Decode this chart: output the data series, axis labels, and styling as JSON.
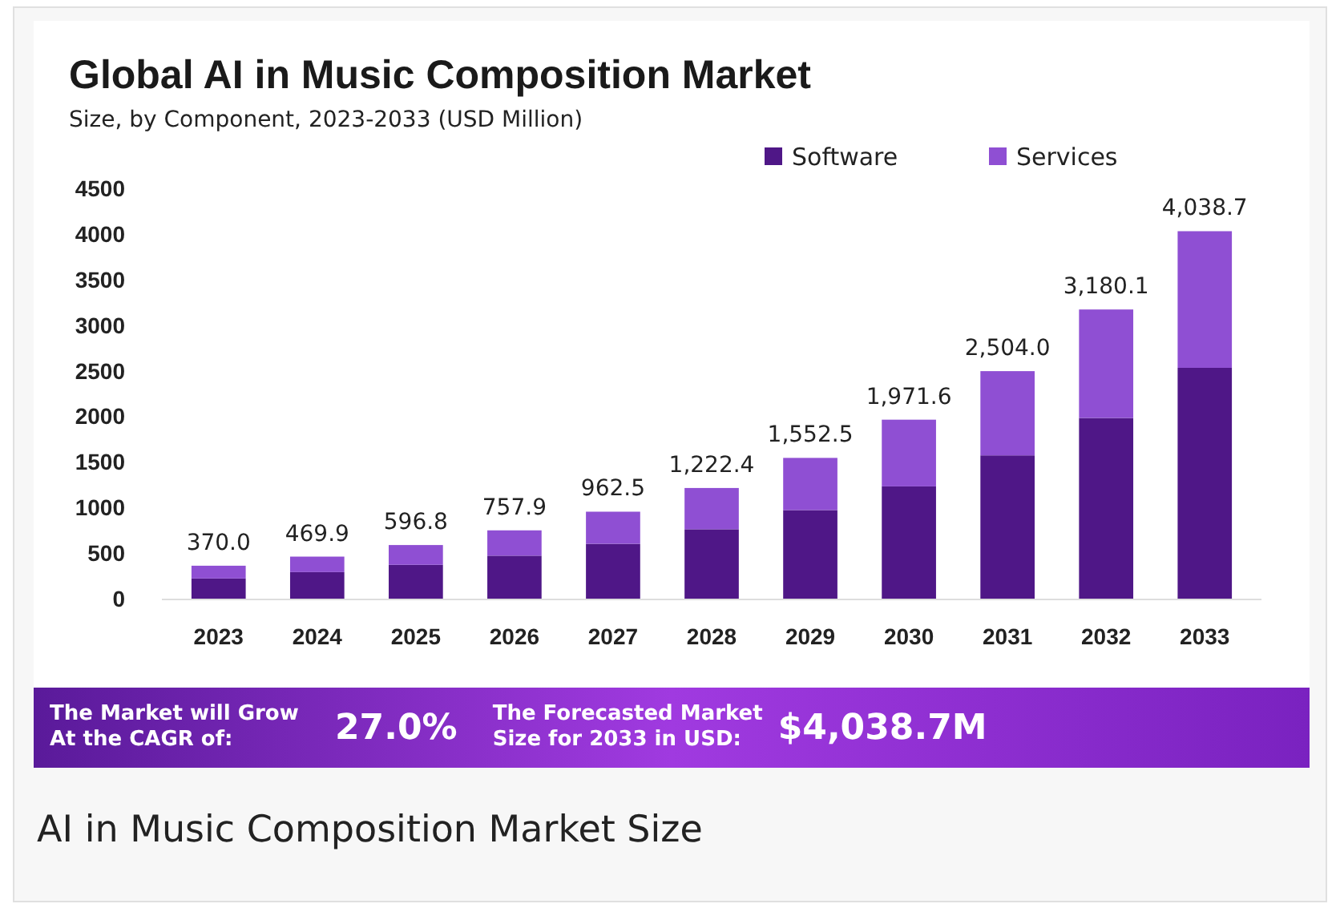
{
  "chart_data": {
    "type": "bar",
    "title": "Global AI in Music Composition Market",
    "subtitle": "Size, by Component, 2023-2033 (USD Million)",
    "categories": [
      "2023",
      "2024",
      "2025",
      "2026",
      "2027",
      "2028",
      "2029",
      "2030",
      "2031",
      "2032",
      "2033"
    ],
    "stacked": true,
    "series": [
      {
        "name": "Software",
        "color": "#4f1787",
        "values": [
          230,
          300,
          380,
          480,
          610,
          770,
          980,
          1240,
          1580,
          1990,
          2540
        ]
      },
      {
        "name": "Services",
        "color": "#8f4fd3",
        "values": [
          140.0,
          169.9,
          216.8,
          277.9,
          352.5,
          452.4,
          572.5,
          731.6,
          924.0,
          1190.1,
          1498.7
        ]
      }
    ],
    "totals": [
      "370.0",
      "469.9",
      "596.8",
      "757.9",
      "962.5",
      "1,222.4",
      "1,552.5",
      "1,971.6",
      "2,504.0",
      "3,180.1",
      "4,038.7"
    ],
    "ylim": [
      0,
      4500
    ],
    "yticks": [
      0,
      500,
      1000,
      1500,
      2000,
      2500,
      3000,
      3500,
      4000,
      4500
    ],
    "grid": false,
    "legend": "top right",
    "annotations": [
      "The Market will Grow At the CAGR of:",
      "27.0%",
      "The Forecasted Market Size for 2033 in USD:",
      "$4,038.7M",
      "AI in Music Composition Market Size"
    ]
  }
}
